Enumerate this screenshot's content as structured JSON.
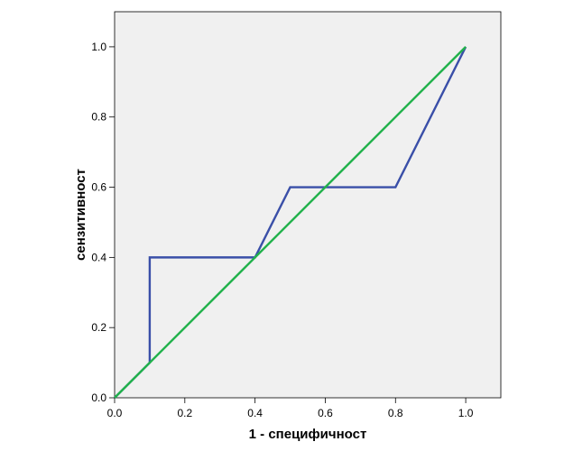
{
  "chart_data": {
    "type": "line",
    "title": "",
    "xlabel": "1 - специфичност",
    "ylabel": "сензитивност",
    "xlim": [
      0,
      1.1
    ],
    "ylim": [
      0,
      1.1
    ],
    "x_ticks": [
      0.0,
      0.2,
      0.4,
      0.6,
      0.8,
      1.0
    ],
    "y_ticks": [
      0.0,
      0.2,
      0.4,
      0.6,
      0.8,
      1.0
    ],
    "x_tick_labels": [
      "0.0",
      "0.2",
      "0.4",
      "0.6",
      "0.8",
      "1.0"
    ],
    "y_tick_labels": [
      "0.0",
      "0.2",
      "0.4",
      "0.6",
      "0.8",
      "1.0"
    ],
    "grid": false,
    "background_color": "#f0f0f0",
    "series": [
      {
        "color": "#3a4fa8",
        "points": [
          [
            0.0,
            0.0
          ],
          [
            0.1,
            0.1
          ],
          [
            0.1,
            0.4
          ],
          [
            0.4,
            0.4
          ],
          [
            0.5,
            0.6
          ],
          [
            0.8,
            0.6
          ],
          [
            1.0,
            1.0
          ]
        ]
      },
      {
        "color": "#22b24c",
        "points": [
          [
            0.0,
            0.0
          ],
          [
            1.0,
            1.0
          ]
        ]
      }
    ]
  }
}
